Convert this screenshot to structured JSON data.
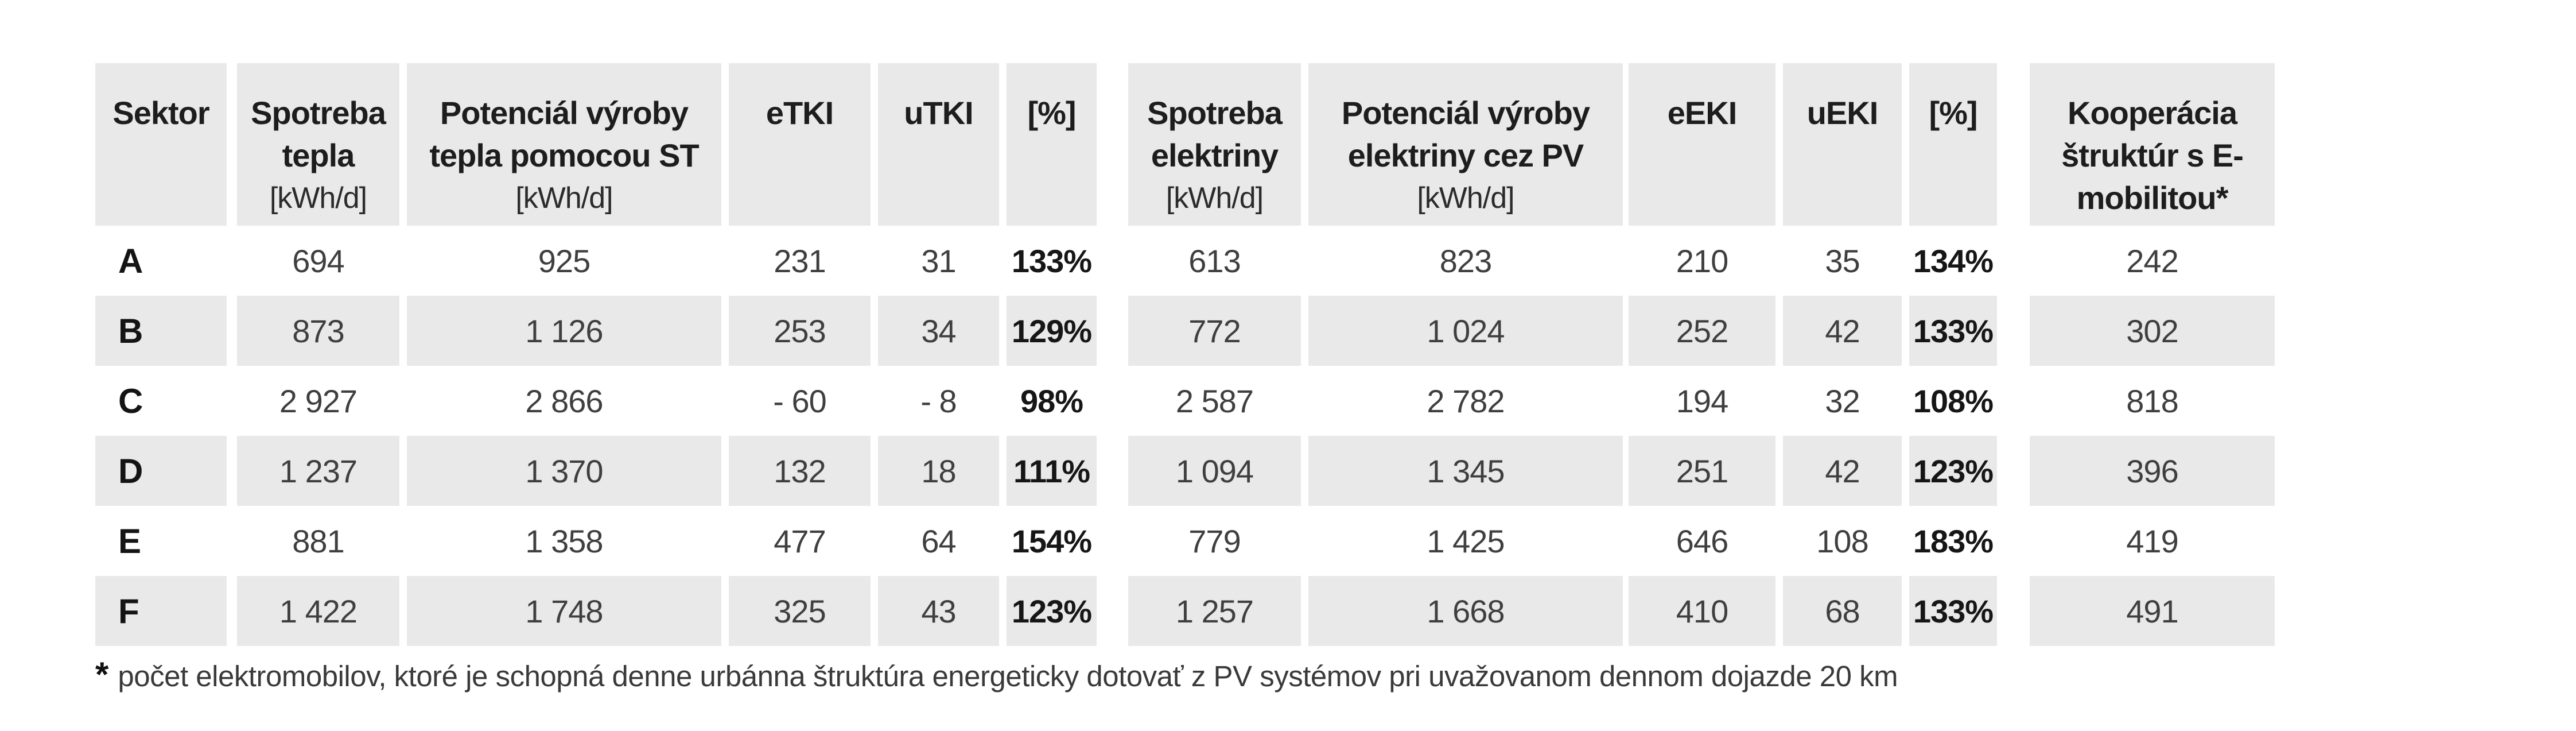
{
  "table": {
    "columns": [
      {
        "title": "Sektor",
        "unit": ""
      },
      {
        "title": "Spotreba tepla",
        "unit": "[kWh/d]"
      },
      {
        "title": "Potenciál výroby tepla pomocou ST",
        "unit": "[kWh/d]"
      },
      {
        "title": "eTKI",
        "unit": ""
      },
      {
        "title": "uTKI",
        "unit": ""
      },
      {
        "title": "[%]",
        "unit": ""
      },
      {
        "title": "Spotreba elektriny",
        "unit": "[kWh/d]"
      },
      {
        "title": "Potenciál výroby elektriny cez PV",
        "unit": "[kWh/d]"
      },
      {
        "title": "eEKI",
        "unit": ""
      },
      {
        "title": "uEKI",
        "unit": ""
      },
      {
        "title": "[%]",
        "unit": ""
      },
      {
        "title": "Kooperácia štruktúr s E-mobilitou*",
        "unit": ""
      }
    ],
    "rows": [
      {
        "cells": [
          "A",
          "694",
          "925",
          "231",
          "31",
          "133%",
          "613",
          "823",
          "210",
          "35",
          "134%",
          "242"
        ]
      },
      {
        "cells": [
          "B",
          "873",
          "1 126",
          "253",
          "34",
          "129%",
          "772",
          "1 024",
          "252",
          "42",
          "133%",
          "302"
        ]
      },
      {
        "cells": [
          "C",
          "2 927",
          "2 866",
          "- 60",
          "- 8",
          "98%",
          "2 587",
          "2 782",
          "194",
          "32",
          "108%",
          "818"
        ]
      },
      {
        "cells": [
          "D",
          "1 237",
          "1 370",
          "132",
          "18",
          "111%",
          "1 094",
          "1 345",
          "251",
          "42",
          "123%",
          "396"
        ]
      },
      {
        "cells": [
          "E",
          "881",
          "1 358",
          "477",
          "64",
          "154%",
          "779",
          "1 425",
          "646",
          "108",
          "183%",
          "419"
        ]
      },
      {
        "cells": [
          "F",
          "1 422",
          "1 748",
          "325",
          "43",
          "123%",
          "1 257",
          "1 668",
          "410",
          "68",
          "133%",
          "491"
        ]
      }
    ]
  },
  "footnote": {
    "marker": "*",
    "text": "počet elektromobilov, ktoré je schopná denne urbánna štruktúra energeticky dotovať z PV systémov pri uvažovanom dennom dojazde 20 km"
  },
  "colors": {
    "cell_background": "#e9e9e9",
    "header_text": "#1d1d1d",
    "data_text": "#3f3f3f"
  }
}
